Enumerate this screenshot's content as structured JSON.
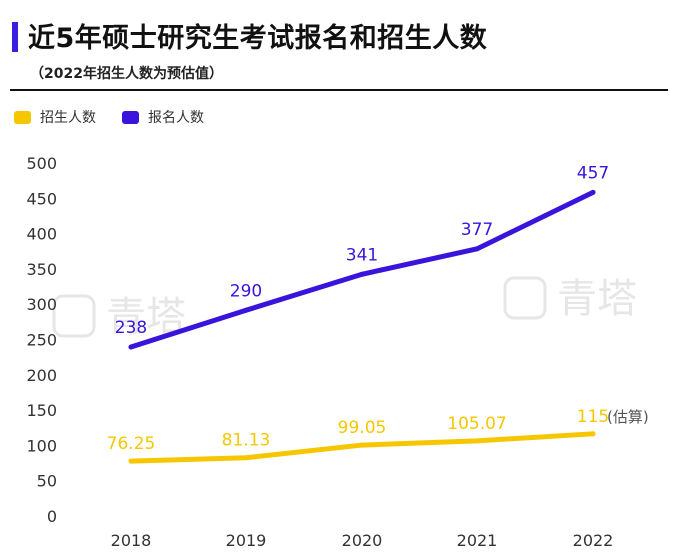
{
  "header": {
    "title": "近5年硕士研究生考试报名和招生人数",
    "subtitle": "（2022年招生人数为预估值）"
  },
  "watermark": {
    "text": "青塔"
  },
  "colors": {
    "enroll": "#f6c700",
    "apply": "#3b14dc",
    "accent": "#3b1fe0"
  },
  "chart_data": {
    "type": "line",
    "title": "近5年硕士研究生考试报名和招生人数",
    "categories": [
      "2018",
      "2019",
      "2020",
      "2021",
      "2022"
    ],
    "series": [
      {
        "name": "招生人数",
        "values": [
          76.25,
          81.13,
          99.05,
          105.07,
          115
        ],
        "labels": [
          "76.25",
          "81.13",
          "99.05",
          "105.07",
          "115"
        ]
      },
      {
        "name": "报名人数",
        "values": [
          238,
          290,
          341,
          377,
          457
        ],
        "labels": [
          "238",
          "290",
          "341",
          "377",
          "457"
        ]
      }
    ],
    "annotation": "(估算)",
    "yticks": [
      "0",
      "50",
      "100",
      "150",
      "200",
      "250",
      "300",
      "350",
      "400",
      "450",
      "500"
    ],
    "ylim": [
      0,
      500
    ],
    "xlabel": "",
    "ylabel": "",
    "grid": false,
    "legend": "top-left"
  }
}
